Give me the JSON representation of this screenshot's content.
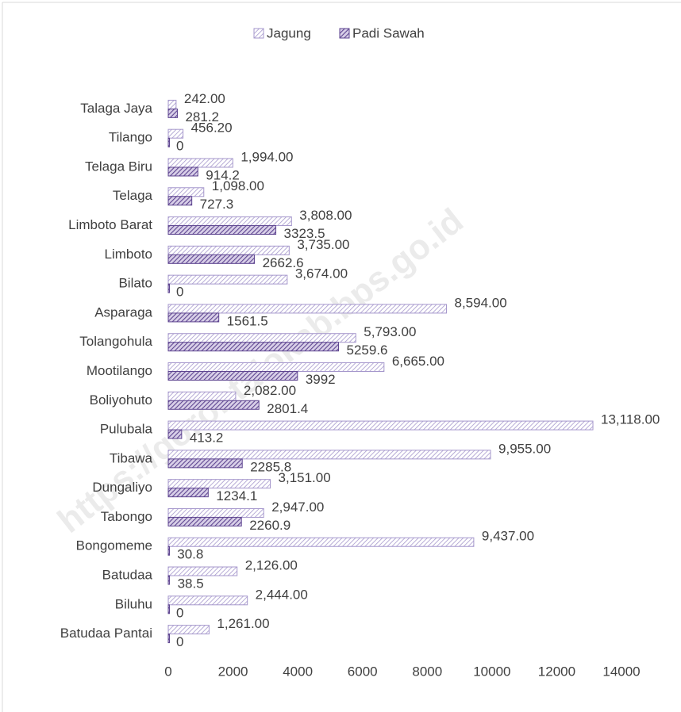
{
  "chart_data": {
    "type": "hbar",
    "watermark": "https://gorontalokab.bps.go.id",
    "categories": [
      "Talaga Jaya",
      "Tilango",
      "Telaga Biru",
      "Telaga",
      "Limboto Barat",
      "Limboto",
      "Bilato",
      "Asparaga",
      "Tolangohula",
      "Mootilango",
      "Boliyohuto",
      "Pulubala",
      "Tibawa",
      "Dungaliyo",
      "Tabongo",
      "Bongomeme",
      "Batudaa",
      "Biluhu",
      "Batudaa Pantai"
    ],
    "series": [
      {
        "name": "Jagung",
        "color": "#a597cc",
        "values": [
          242,
          456.2,
          1994,
          1098,
          3808,
          3735,
          3674,
          8594,
          5793,
          6665,
          2082,
          13118,
          9955,
          3151,
          2947,
          9437,
          2126,
          2444,
          1261
        ],
        "value_labels": [
          "242.00",
          "456.20",
          "1,994.00",
          "1,098.00",
          "3,808.00",
          "3,735.00",
          "3,674.00",
          "8,594.00",
          "5,793.00",
          "6,665.00",
          "2,082.00",
          "13,118.00",
          "9,955.00",
          "3,151.00",
          "2,947.00",
          "9,437.00",
          "2,126.00",
          "2,444.00",
          "1,261.00"
        ]
      },
      {
        "name": "Padi Sawah",
        "color": "#5e4590",
        "values": [
          281.2,
          0,
          914.2,
          727.3,
          3323.5,
          2662.6,
          0,
          1561.5,
          5259.6,
          3992,
          2801.4,
          413.2,
          2285.8,
          1234.1,
          2260.9,
          30.8,
          38.5,
          0,
          0
        ]
      }
    ],
    "xlim": [
      0,
      14000
    ],
    "xticks": [
      0,
      2000,
      4000,
      6000,
      8000,
      10000,
      12000,
      14000
    ],
    "legend": "top"
  }
}
